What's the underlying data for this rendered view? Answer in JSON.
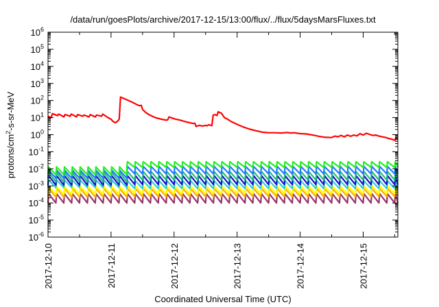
{
  "chart_data": {
    "type": "line",
    "title": "/data/run/goesPlots/archive/2017-12-15/13:00/flux/../flux/5daysMarsFluxes.txt",
    "xlabel": "Coordinated Universal Time (UTC)",
    "ylabel": {
      "base": "protons/cm",
      "sup": "2",
      "rest": "-s-sr-MeV"
    },
    "y_scale": "log",
    "ylim_exp": [
      -6,
      6
    ],
    "y_ticks": [
      {
        "base": "10",
        "exp": "-6"
      },
      {
        "base": "10",
        "exp": "-5"
      },
      {
        "base": "10",
        "exp": "-4"
      },
      {
        "base": "10",
        "exp": "-3"
      },
      {
        "base": "10",
        "exp": "-2"
      },
      {
        "base": "10",
        "exp": "-1"
      },
      {
        "base": "10",
        "exp": "0"
      },
      {
        "base": "10",
        "exp": "1"
      },
      {
        "base": "10",
        "exp": "2"
      },
      {
        "base": "10",
        "exp": "3"
      },
      {
        "base": "10",
        "exp": "4"
      },
      {
        "base": "10",
        "exp": "5"
      },
      {
        "base": "10",
        "exp": "6"
      }
    ],
    "x_range_days": [
      0,
      5.55
    ],
    "x_ticks": [
      "2017-12-10",
      "2017-12-11",
      "2017-12-12",
      "2017-12-13",
      "2017-12-14",
      "2017-12-15"
    ],
    "grid": false,
    "legend": "none",
    "series": [
      {
        "color": "#ff0000",
        "points": [
          [
            0.0,
            12
          ],
          [
            0.05,
            10
          ],
          [
            0.07,
            17
          ],
          [
            0.15,
            13
          ],
          [
            0.17,
            16
          ],
          [
            0.25,
            11
          ],
          [
            0.27,
            15
          ],
          [
            0.35,
            12
          ],
          [
            0.37,
            16
          ],
          [
            0.45,
            11
          ],
          [
            0.47,
            15
          ],
          [
            0.55,
            12
          ],
          [
            0.57,
            14
          ],
          [
            0.65,
            11
          ],
          [
            0.67,
            15
          ],
          [
            0.75,
            11
          ],
          [
            0.77,
            14
          ],
          [
            0.85,
            12
          ],
          [
            0.87,
            16
          ],
          [
            0.95,
            10
          ],
          [
            1.0,
            8
          ],
          [
            1.03,
            6
          ],
          [
            1.07,
            5
          ],
          [
            1.1,
            6
          ],
          [
            1.13,
            8
          ],
          [
            1.15,
            160
          ],
          [
            1.25,
            110
          ],
          [
            1.35,
            75
          ],
          [
            1.4,
            60
          ],
          [
            1.45,
            50
          ],
          [
            1.48,
            52
          ],
          [
            1.5,
            30
          ],
          [
            1.55,
            20
          ],
          [
            1.6,
            15
          ],
          [
            1.7,
            10
          ],
          [
            1.8,
            8
          ],
          [
            1.88,
            7
          ],
          [
            1.9,
            7.5
          ],
          [
            1.92,
            11
          ],
          [
            2.0,
            8.5
          ],
          [
            2.1,
            7
          ],
          [
            2.2,
            5.5
          ],
          [
            2.3,
            4.5
          ],
          [
            2.33,
            4.7
          ],
          [
            2.35,
            3
          ],
          [
            2.4,
            3.5
          ],
          [
            2.45,
            3.2
          ],
          [
            2.5,
            3.5
          ],
          [
            2.52,
            3.3
          ],
          [
            2.55,
            3.8
          ],
          [
            2.6,
            3.4
          ],
          [
            2.62,
            14
          ],
          [
            2.65,
            15
          ],
          [
            2.68,
            13
          ],
          [
            2.7,
            22
          ],
          [
            2.75,
            18
          ],
          [
            2.8,
            10
          ],
          [
            2.85,
            8
          ],
          [
            2.9,
            6
          ],
          [
            3.0,
            4
          ],
          [
            3.1,
            2.8
          ],
          [
            3.2,
            2.1
          ],
          [
            3.3,
            1.7
          ],
          [
            3.4,
            1.4
          ],
          [
            3.5,
            1.3
          ],
          [
            3.6,
            1.3
          ],
          [
            3.7,
            1.25
          ],
          [
            3.8,
            1.35
          ],
          [
            3.85,
            1.25
          ],
          [
            3.9,
            1.3
          ],
          [
            4.0,
            1.15
          ],
          [
            4.1,
            1.1
          ],
          [
            4.2,
            0.95
          ],
          [
            4.3,
            0.8
          ],
          [
            4.4,
            0.7
          ],
          [
            4.5,
            0.68
          ],
          [
            4.55,
            0.82
          ],
          [
            4.6,
            0.75
          ],
          [
            4.65,
            0.9
          ],
          [
            4.7,
            0.75
          ],
          [
            4.75,
            0.95
          ],
          [
            4.8,
            0.8
          ],
          [
            4.85,
            0.95
          ],
          [
            4.9,
            0.85
          ],
          [
            4.95,
            1.15
          ],
          [
            5.0,
            0.95
          ],
          [
            5.05,
            1.2
          ],
          [
            5.1,
            1.05
          ],
          [
            5.15,
            0.9
          ],
          [
            5.2,
            0.95
          ],
          [
            5.25,
            0.82
          ],
          [
            5.3,
            0.75
          ],
          [
            5.35,
            0.7
          ],
          [
            5.4,
            0.6
          ],
          [
            5.45,
            0.55
          ],
          [
            5.5,
            0.47
          ],
          [
            5.52,
            0.65
          ],
          [
            5.55,
            0.55
          ]
        ]
      },
      {
        "color": "#22ee22",
        "sawtooth": {
          "peak_before": 0.013,
          "low_before": 0.0045,
          "peak_after": 0.026,
          "low_after": 0.012
        }
      },
      {
        "color": "#2277ff",
        "sawtooth": {
          "peak_before": 0.0085,
          "low_before": 0.0028,
          "peak_after": 0.014,
          "low_after": 0.005
        }
      },
      {
        "color": "#22bb77",
        "sawtooth": {
          "peak_before": 0.0065,
          "low_before": 0.0017,
          "peak_after": 0.007,
          "low_after": 0.0022
        }
      },
      {
        "color": "#1111cc",
        "sawtooth": {
          "peak_before": 0.004,
          "low_before": 0.0011,
          "peak_after": 0.004,
          "low_after": 0.0012
        }
      },
      {
        "color": "#33cccc",
        "sawtooth": {
          "peak_before": 0.0022,
          "low_before": 0.0008,
          "peak_after": 0.002,
          "low_after": 0.0007
        }
      },
      {
        "color": "#ffff00",
        "sawtooth": {
          "peak_before": 0.00095,
          "low_before": 0.00032,
          "peak_after": 0.001,
          "low_after": 0.00035
        }
      },
      {
        "color": "#ffaa00",
        "sawtooth": {
          "peak_before": 0.0007,
          "low_before": 0.00022,
          "peak_after": 0.0007,
          "low_after": 0.00024
        }
      },
      {
        "color": "#993366",
        "sawtooth": {
          "peak_before": 0.00035,
          "low_before": 0.0001,
          "peak_after": 0.00035,
          "low_after": 0.0001
        }
      }
    ]
  }
}
